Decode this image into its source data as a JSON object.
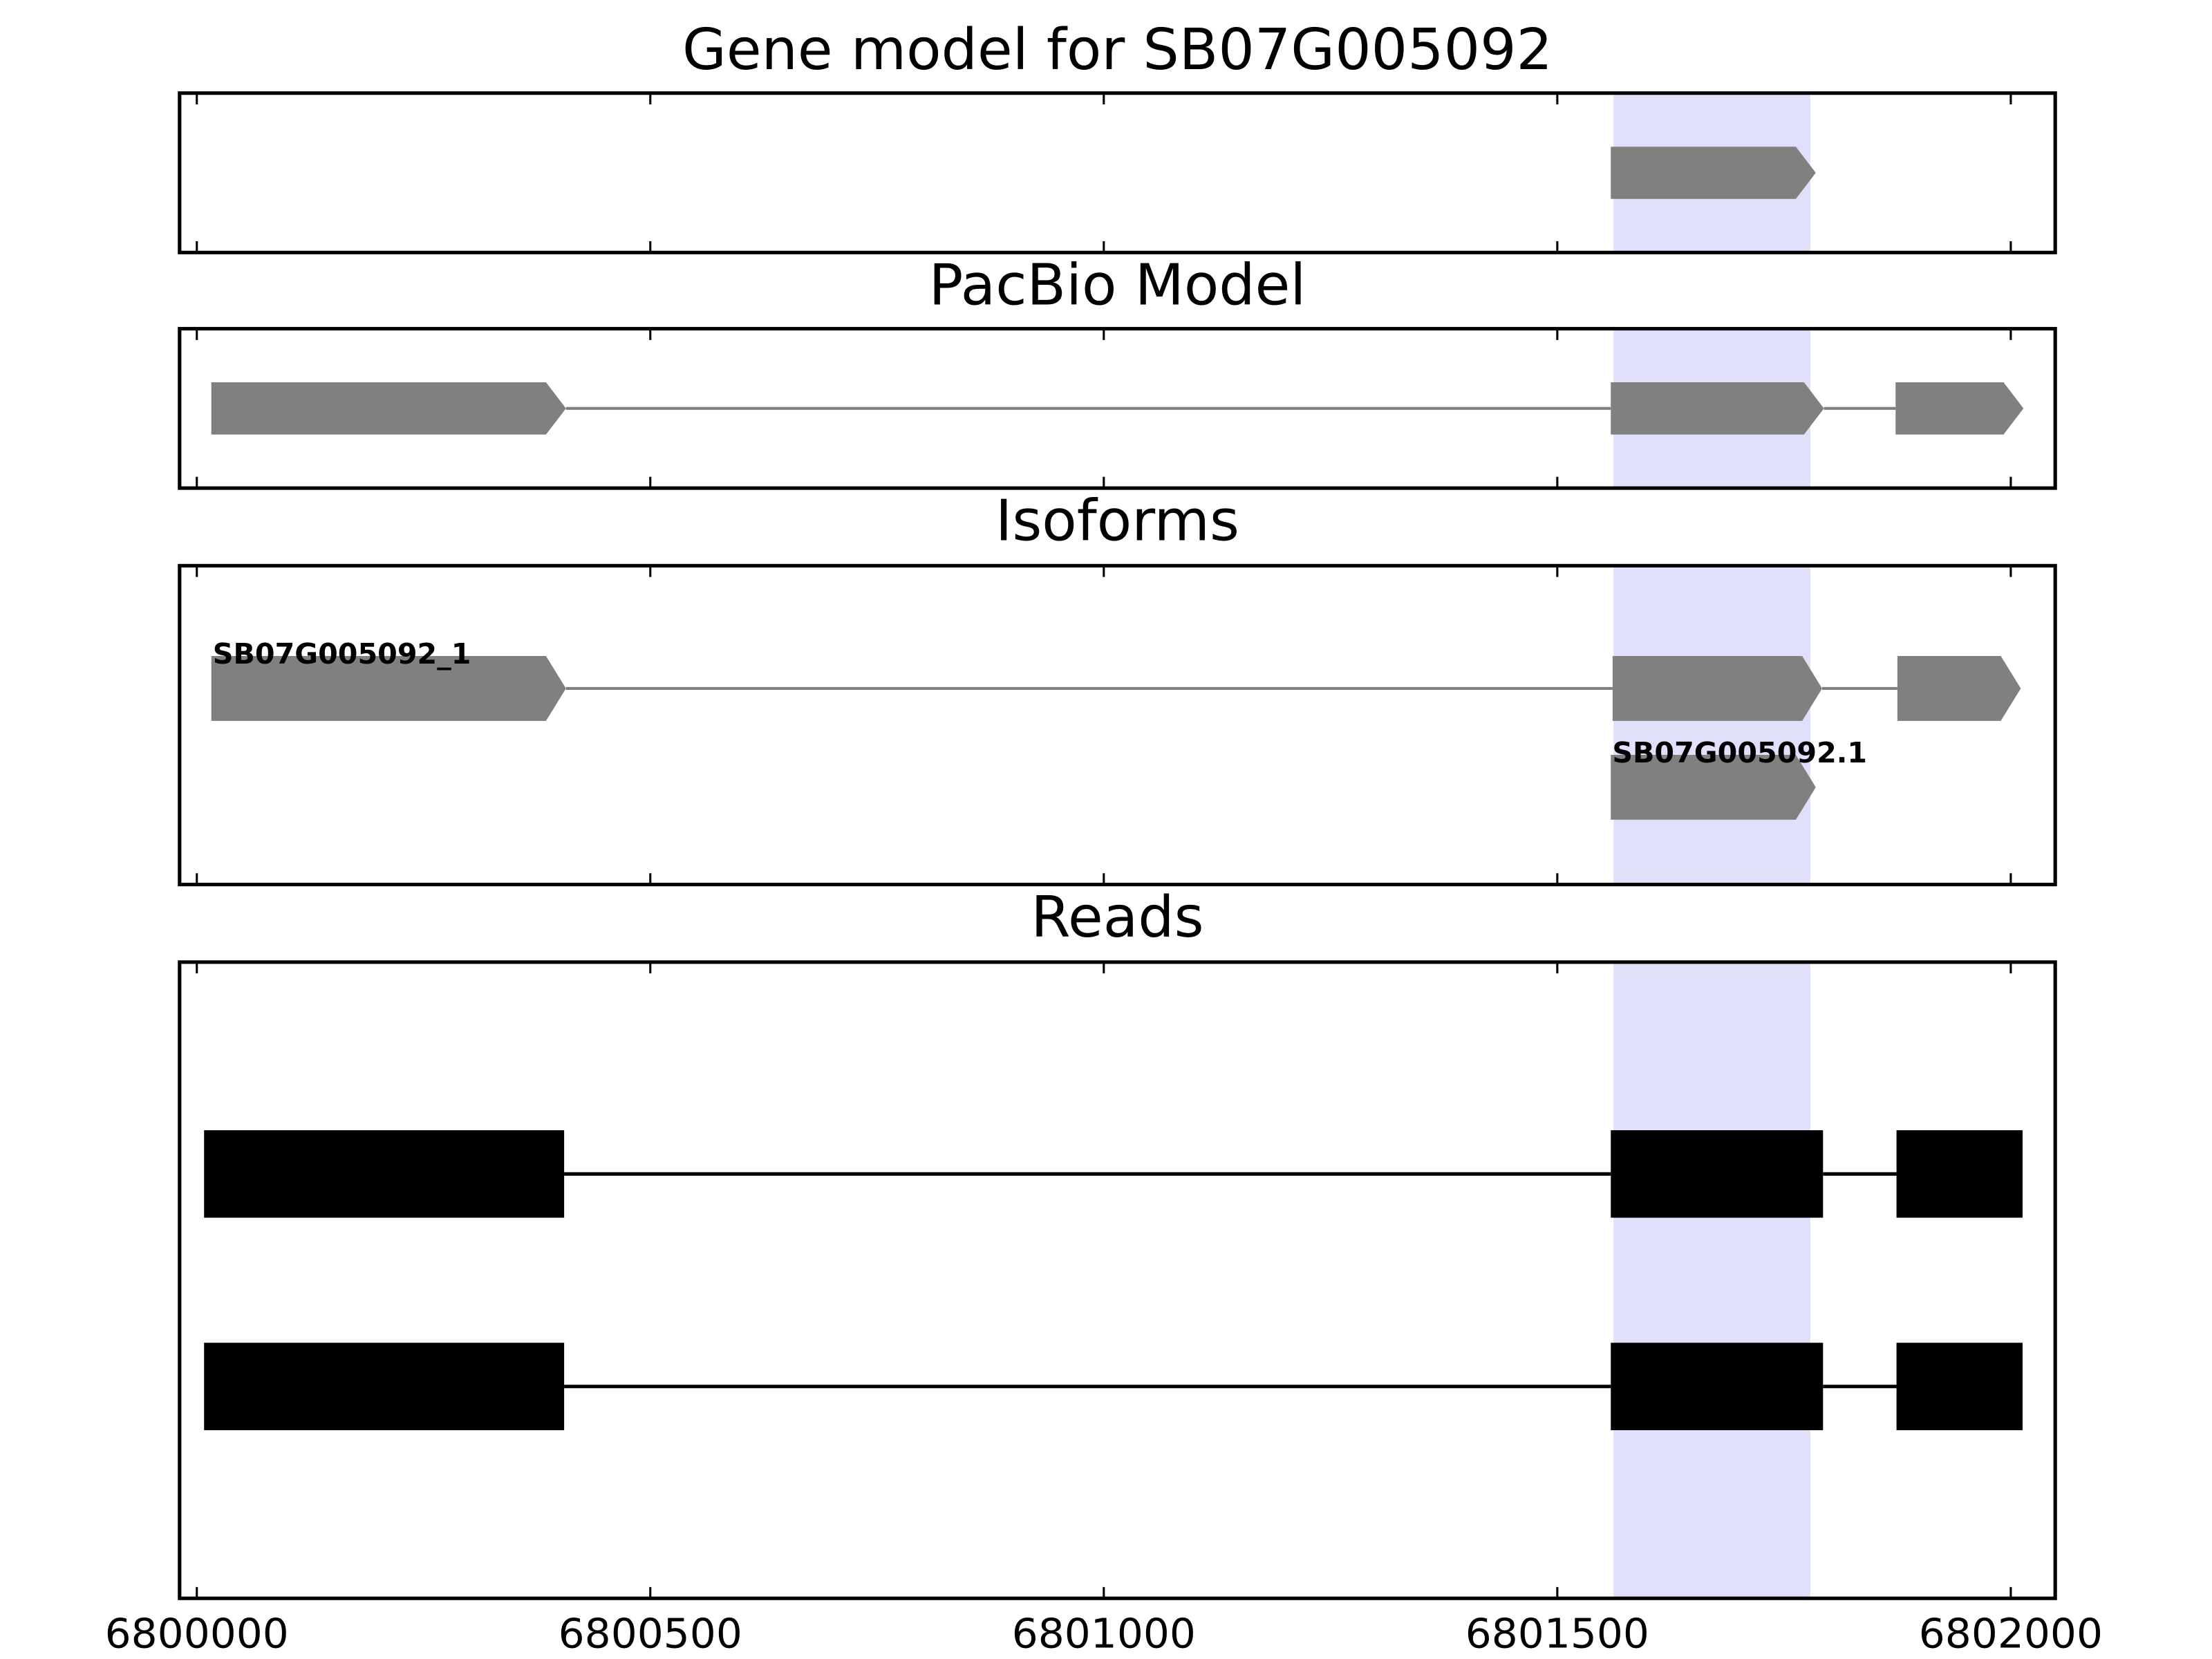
{
  "chart_data": {
    "type": "gene_tracks",
    "xlim": [
      6799981,
      6802049
    ],
    "xticks": [
      6800000,
      6800500,
      6801000,
      6801500,
      6802000
    ],
    "highlight": [
      6801562,
      6801779
    ],
    "highlight_color": "#e0e0fb",
    "panels": [
      {
        "title": "Gene model for SB07G005092",
        "style": "arrow",
        "color": "#808080",
        "items": [
          {
            "exons": [
              [
                6801559,
                6801785
              ]
            ]
          }
        ]
      },
      {
        "title": "PacBio Model",
        "style": "arrow",
        "color": "#808080",
        "items": [
          {
            "exons": [
              [
                6800016,
                6800407
              ],
              [
                6801559,
                6801794
              ],
              [
                6801873,
                6802014
              ]
            ]
          }
        ]
      },
      {
        "title": "Isoforms",
        "style": "arrow",
        "color": "#808080",
        "items": [
          {
            "label": "SB07G005092_1",
            "exons": [
              [
                6800016,
                6800407
              ],
              [
                6801561,
                6801792
              ],
              [
                6801875,
                6802011
              ]
            ]
          },
          {
            "label": "SB07G005092.1",
            "exons": [
              [
                6801559,
                6801785
              ]
            ]
          }
        ]
      },
      {
        "title": "Reads",
        "style": "block",
        "color": "#000000",
        "items": [
          {
            "exons": [
              [
                6800008,
                6800405
              ],
              [
                6801559,
                6801793
              ],
              [
                6801874,
                6802013
              ]
            ]
          },
          {
            "exons": [
              [
                6800008,
                6800405
              ],
              [
                6801559,
                6801793
              ],
              [
                6801874,
                6802013
              ]
            ]
          }
        ]
      }
    ]
  }
}
